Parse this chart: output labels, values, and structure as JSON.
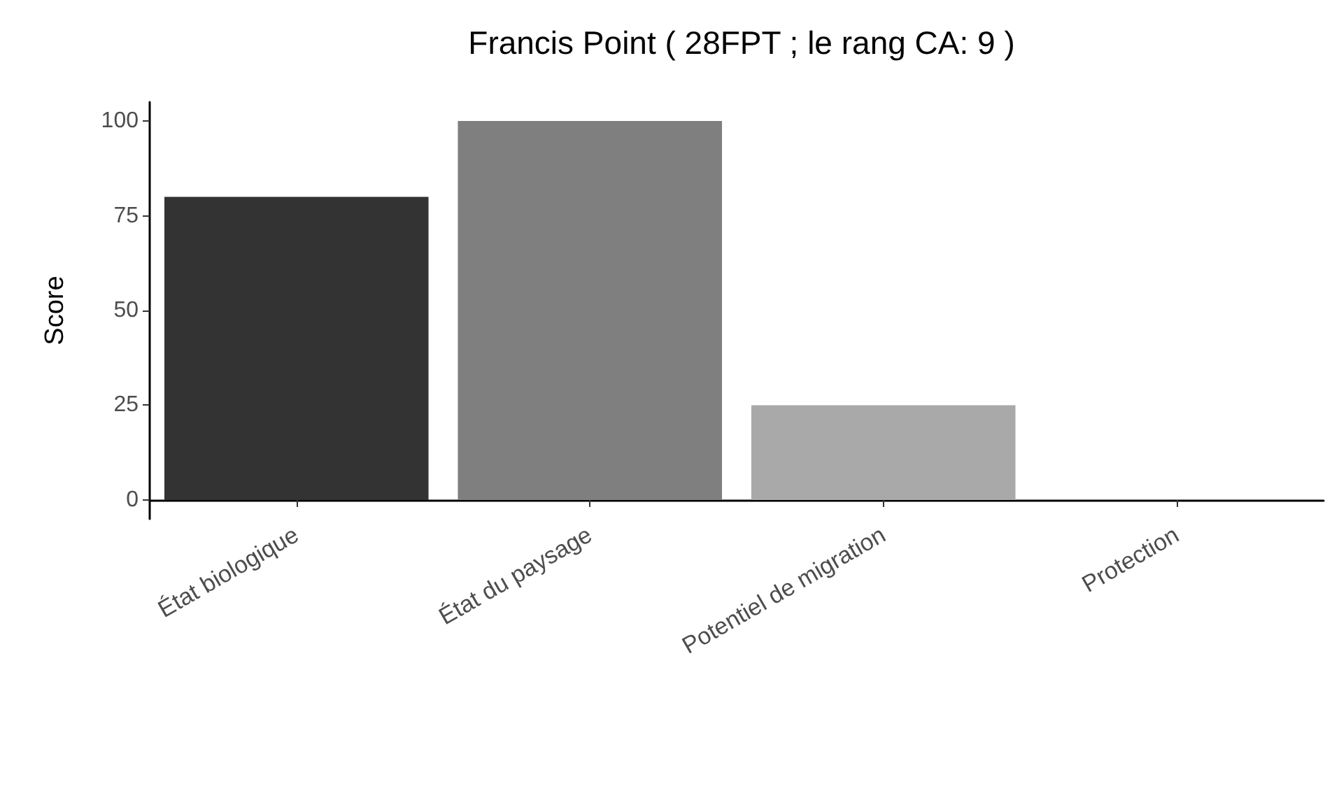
{
  "chart_data": {
    "type": "bar",
    "title": "Francis Point ( 28FPT ; le rang CA: 9 )",
    "ylabel": "Score",
    "categories": [
      "État biologique",
      "État du paysage",
      "Potentiel de migration",
      "Protection"
    ],
    "values": [
      80,
      100,
      25,
      0
    ],
    "colors": [
      "#333333",
      "#7f7f7f",
      "#a9a9a9",
      "#d4d4d4"
    ],
    "ylim": [
      -5,
      105
    ],
    "yticks": [
      0,
      25,
      50,
      75,
      100
    ]
  }
}
